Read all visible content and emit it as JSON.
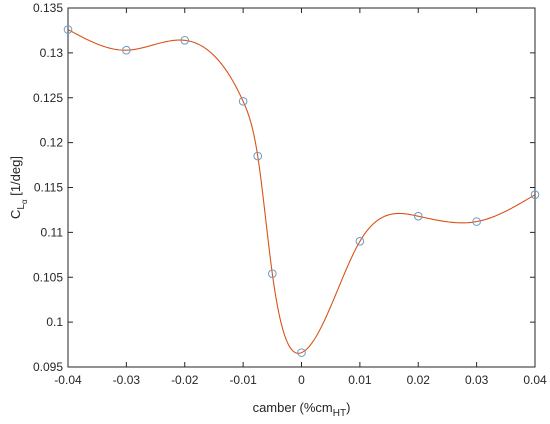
{
  "chart_data": {
    "type": "line",
    "xlabel": "camber (%cm",
    "xlabel_sub": "HT",
    "xlabel_close": ")",
    "ylabel_main": "C",
    "ylabel_sub1": "L",
    "ylabel_sub2": "α",
    "ylabel_unit": " [1/deg]",
    "xlim": [
      -0.04,
      0.04
    ],
    "ylim": [
      0.095,
      0.135
    ],
    "xticks": [
      "-0.04",
      "-0.03",
      "-0.02",
      "-0.01",
      "0",
      "0.01",
      "0.02",
      "0.03",
      "0.04"
    ],
    "yticks": [
      "0.095",
      "0.1",
      "0.105",
      "0.11",
      "0.115",
      "0.12",
      "0.125",
      "0.13",
      "0.135"
    ],
    "grid": false,
    "series": [
      {
        "style": "markers",
        "marker": "circle",
        "color": "#6a9bc3",
        "x": [
          -0.04,
          -0.03,
          -0.02,
          -0.01,
          -0.0075,
          -0.005,
          0,
          0.01,
          0.02,
          0.03,
          0.04
        ],
        "y": [
          0.1326,
          0.1303,
          0.1314,
          0.1246,
          0.1185,
          0.1054,
          0.0966,
          0.109,
          0.1118,
          0.1112,
          0.1142
        ]
      },
      {
        "style": "line",
        "color": "#d95319",
        "x": [
          -0.04,
          -0.03,
          -0.02,
          -0.01,
          -0.0075,
          -0.005,
          0,
          0.01,
          0.02,
          0.03,
          0.04
        ],
        "y": [
          0.1326,
          0.1303,
          0.1314,
          0.1246,
          0.1185,
          0.1054,
          0.0966,
          0.109,
          0.1118,
          0.1112,
          0.1142
        ]
      }
    ]
  }
}
